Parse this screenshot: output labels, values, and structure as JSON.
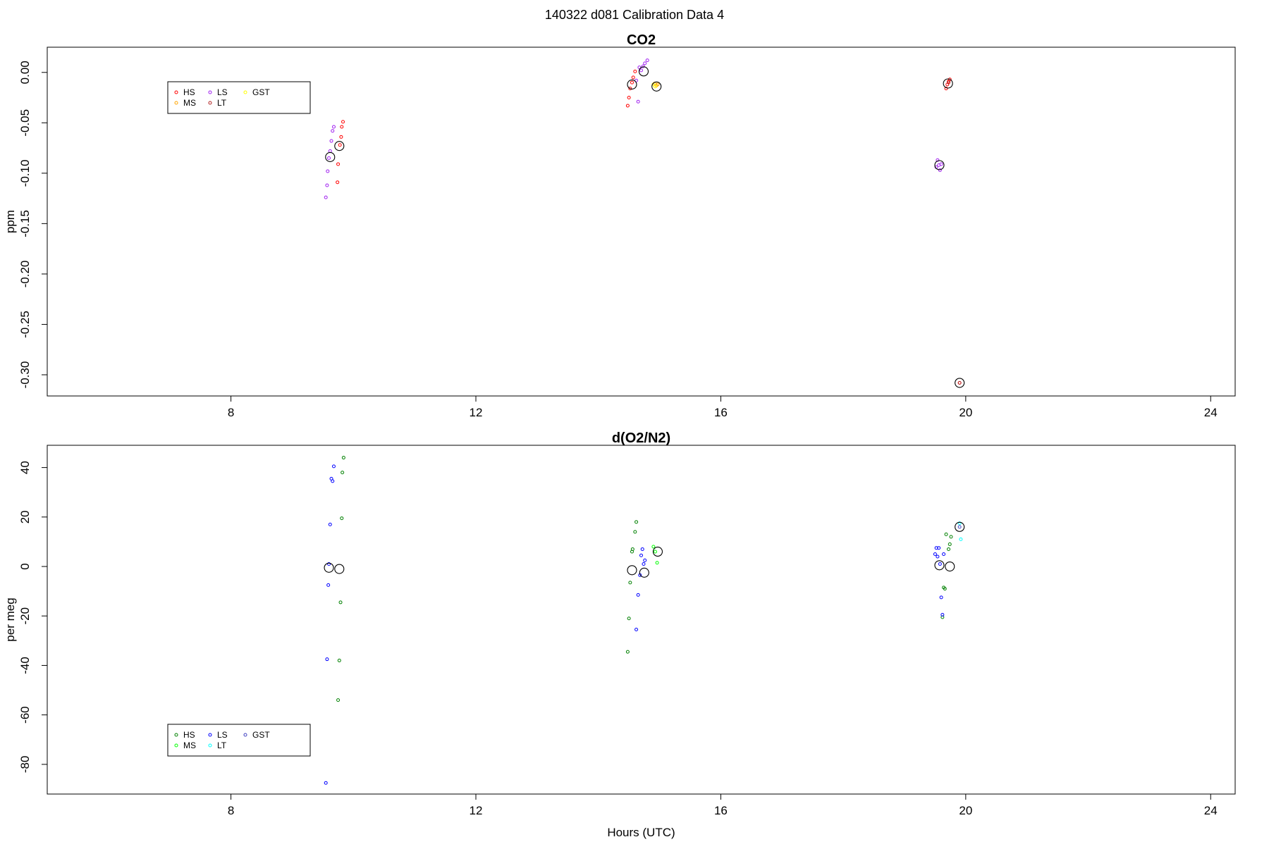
{
  "figure": {
    "title": "140322   d081   Calibration Data 4"
  },
  "chart_data": [
    {
      "type": "scatter",
      "title": "CO2",
      "xlabel": "",
      "ylabel": "ppm",
      "xlim": [
        5,
        24.4
      ],
      "ylim": [
        -0.321,
        0.025
      ],
      "xticks": [
        8,
        12,
        16,
        20,
        24
      ],
      "yticks": [
        0.0,
        -0.05,
        -0.1,
        -0.15,
        -0.2,
        -0.25,
        -0.3
      ],
      "ytick_labels": [
        "0.00",
        "-0.05",
        "-0.10",
        "-0.15",
        "-0.20",
        "-0.25",
        "-0.30"
      ],
      "legend": {
        "placement": "top-left",
        "entries": [
          {
            "label": "HS",
            "color": "#ff0000"
          },
          {
            "label": "MS",
            "color": "#ffa500"
          },
          {
            "label": "LS",
            "color": "#a020f0"
          },
          {
            "label": "LT",
            "color": "#b22222"
          },
          {
            "label": "GST",
            "color": "#ffff00"
          }
        ]
      },
      "series": [
        {
          "color": "#ff0000",
          "points": [
            [
              9.83,
              -0.049
            ],
            [
              9.81,
              -0.054
            ],
            [
              9.8,
              -0.064
            ],
            [
              9.78,
              -0.072
            ],
            [
              9.75,
              -0.091
            ],
            [
              9.74,
              -0.109
            ],
            [
              14.48,
              -0.033
            ],
            [
              14.5,
              -0.025
            ],
            [
              14.52,
              -0.016
            ],
            [
              14.55,
              -0.01
            ],
            [
              14.57,
              -0.005
            ],
            [
              14.6,
              0.001
            ],
            [
              19.68,
              -0.016
            ],
            [
              19.7,
              -0.012
            ],
            [
              19.72,
              -0.009
            ],
            [
              19.74,
              -0.007
            ],
            [
              19.9,
              -0.308
            ]
          ]
        },
        {
          "color": "#a020f0",
          "points": [
            [
              9.55,
              -0.124
            ],
            [
              9.57,
              -0.112
            ],
            [
              9.58,
              -0.098
            ],
            [
              9.6,
              -0.085
            ],
            [
              9.62,
              -0.078
            ],
            [
              9.64,
              -0.068
            ],
            [
              9.66,
              -0.058
            ],
            [
              9.68,
              -0.054
            ],
            [
              14.62,
              -0.008
            ],
            [
              14.65,
              -0.029
            ],
            [
              14.7,
              0.002
            ],
            [
              14.73,
              0.006
            ],
            [
              14.76,
              0.009
            ],
            [
              14.8,
              0.012
            ],
            [
              14.67,
              0.005
            ],
            [
              19.52,
              -0.094
            ],
            [
              19.54,
              -0.087
            ],
            [
              19.56,
              -0.092
            ],
            [
              19.58,
              -0.097
            ],
            [
              19.6,
              -0.091
            ]
          ]
        },
        {
          "color": "#ffa500",
          "points": [
            [
              14.92,
              -0.011
            ],
            [
              14.95,
              -0.013
            ],
            [
              14.97,
              -0.012
            ]
          ]
        },
        {
          "color": "#b22222",
          "points": [
            [
              19.9,
              -0.308
            ],
            [
              19.72,
              -0.01
            ]
          ]
        },
        {
          "color": "#ffff00",
          "points": [
            [
              14.9,
              -0.012
            ],
            [
              14.93,
              -0.014
            ]
          ]
        },
        {
          "color": "#000000",
          "marker": "mean",
          "points": [
            [
              9.62,
              -0.084
            ],
            [
              9.77,
              -0.073
            ],
            [
              14.55,
              -0.012
            ],
            [
              14.74,
              0.001
            ],
            [
              14.95,
              -0.014
            ],
            [
              19.57,
              -0.092
            ],
            [
              19.71,
              -0.011
            ],
            [
              19.9,
              -0.308
            ]
          ]
        }
      ]
    },
    {
      "type": "scatter",
      "title": "d(O2/N2)",
      "xlabel": "Hours (UTC)",
      "ylabel": "per meg",
      "xlim": [
        5,
        24.4
      ],
      "ylim": [
        -92,
        49
      ],
      "xticks": [
        8,
        12,
        16,
        20,
        24
      ],
      "yticks": [
        40,
        20,
        0,
        -20,
        -40,
        -60,
        -80
      ],
      "ytick_labels": [
        "40",
        "20",
        "0",
        "-20",
        "-40",
        "-60",
        "-80"
      ],
      "legend": {
        "placement": "bottom-left",
        "entries": [
          {
            "label": "HS",
            "color": "#008000"
          },
          {
            "label": "MS",
            "color": "#00ff00"
          },
          {
            "label": "LS",
            "color": "#0000ff"
          },
          {
            "label": "LT",
            "color": "#00ffff"
          },
          {
            "label": "GST",
            "color": "#4040c0"
          }
        ]
      },
      "series": [
        {
          "color": "#008000",
          "points": [
            [
              9.84,
              44
            ],
            [
              9.82,
              38
            ],
            [
              9.81,
              19.5
            ],
            [
              9.79,
              -14.5
            ],
            [
              9.77,
              -38
            ],
            [
              9.75,
              -54
            ],
            [
              14.48,
              -34.5
            ],
            [
              14.5,
              -21
            ],
            [
              14.52,
              -6.5
            ],
            [
              14.55,
              6
            ],
            [
              14.56,
              7
            ],
            [
              14.6,
              14
            ],
            [
              14.62,
              18
            ],
            [
              19.62,
              -20.5
            ],
            [
              19.64,
              -8.5
            ],
            [
              19.66,
              -9
            ],
            [
              19.68,
              13
            ],
            [
              19.72,
              7
            ],
            [
              19.74,
              9
            ],
            [
              19.76,
              12
            ]
          ]
        },
        {
          "color": "#0000ff",
          "points": [
            [
              9.55,
              -87.5
            ],
            [
              9.57,
              -37.5
            ],
            [
              9.59,
              -7.5
            ],
            [
              9.6,
              1
            ],
            [
              9.62,
              17
            ],
            [
              9.64,
              35.5
            ],
            [
              9.66,
              34.5
            ],
            [
              9.68,
              40.5
            ],
            [
              14.62,
              -25.5
            ],
            [
              14.65,
              -11.5
            ],
            [
              14.68,
              -3.5
            ],
            [
              14.7,
              4.5
            ],
            [
              14.72,
              7
            ],
            [
              14.74,
              1
            ],
            [
              14.76,
              2.5
            ],
            [
              19.5,
              5
            ],
            [
              19.52,
              7.5
            ],
            [
              19.54,
              4
            ],
            [
              19.56,
              7.5
            ],
            [
              19.58,
              1
            ],
            [
              19.6,
              -12.5
            ],
            [
              19.62,
              -19.5
            ],
            [
              19.64,
              5
            ]
          ]
        },
        {
          "color": "#00ff00",
          "points": [
            [
              14.9,
              8
            ],
            [
              14.93,
              6
            ],
            [
              14.96,
              1.5
            ]
          ]
        },
        {
          "color": "#00ffff",
          "points": [
            [
              19.9,
              17.5
            ],
            [
              19.92,
              11
            ]
          ]
        },
        {
          "color": "#4040c0",
          "points": [
            [
              19.9,
              16
            ]
          ]
        },
        {
          "color": "#000000",
          "marker": "mean",
          "points": [
            [
              9.6,
              -0.5
            ],
            [
              9.77,
              -1
            ],
            [
              14.55,
              -1.5
            ],
            [
              14.75,
              -2.5
            ],
            [
              14.97,
              6
            ],
            [
              19.57,
              0.5
            ],
            [
              19.74,
              0
            ],
            [
              19.9,
              16
            ]
          ]
        }
      ]
    }
  ]
}
